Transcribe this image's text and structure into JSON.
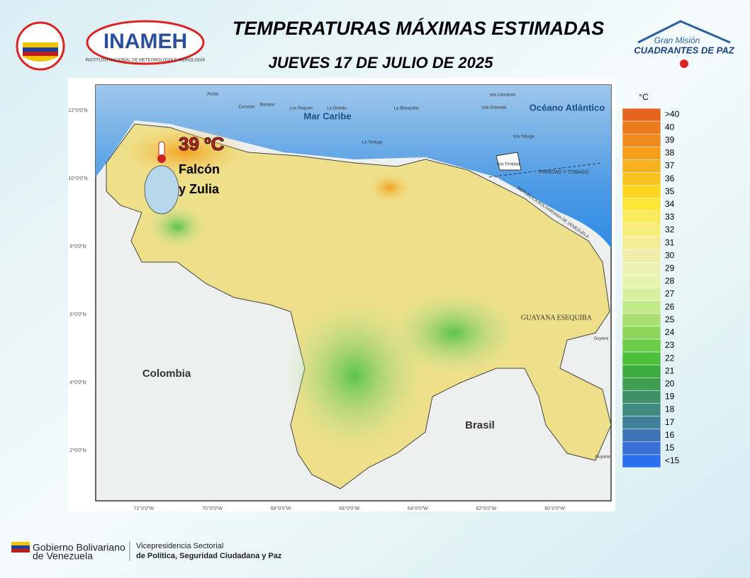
{
  "header": {
    "title": "TEMPERATURAS MÁXIMAS ESTIMADAS",
    "date": "JUEVES 17 DE JULIO DE 2025",
    "logo_left_text": "INAMEH",
    "logo_left_subtext": "INSTITUTO NACIONAL DE METEOROLOGÍA E HIDROLOGÍA",
    "logo_right_top": "Gran Misión",
    "logo_right_bottom": "CUADRANTES DE PAZ"
  },
  "map": {
    "highlight": {
      "value": "39 ºC",
      "region_line1": "Falcón",
      "region_line2": "y Zulia"
    },
    "labels": [
      "Mar Caribe",
      "Océano Atlántico",
      "Colombia",
      "Brasil",
      "GUAYANA ESEQUIBA",
      "TRINIDAD Y TOBAGO",
      "REPUBLICA BOLIVARIANA DE VENEZUELA",
      "Aruba",
      "Curazao",
      "Bonaire",
      "Los Roques",
      "La Orchila",
      "La Blanquilla",
      "La Tortuga",
      "Isla Carriacou",
      "Isla Granada",
      "Isla Tobago",
      "Isla Trinidad",
      "Guyana",
      "Guyana"
    ],
    "lat_labels": [
      "12°0'0\"N",
      "10°0'0\"N",
      "8°0'0\"N",
      "6°0'0\"N",
      "4°0'0\"N",
      "2°0'0\"N"
    ],
    "lon_labels": [
      "72°0'0\"W",
      "70°0'0\"W",
      "68°0'0\"W",
      "66°0'0\"W",
      "64°0'0\"W",
      "62°0'0\"W",
      "60°0'0\"W"
    ]
  },
  "legend": {
    "unit": "°C",
    "items": [
      {
        "label": ">40",
        "color": "#e8641e"
      },
      {
        "label": "40",
        "color": "#ec7a1e"
      },
      {
        "label": "39",
        "color": "#f08c1c"
      },
      {
        "label": "38",
        "color": "#f49e1c"
      },
      {
        "label": "37",
        "color": "#f7b11e"
      },
      {
        "label": "36",
        "color": "#f9c41f"
      },
      {
        "label": "35",
        "color": "#fbd621"
      },
      {
        "label": "34",
        "color": "#fbe536"
      },
      {
        "label": "33",
        "color": "#f8ea5a"
      },
      {
        "label": "32",
        "color": "#f5ec7a"
      },
      {
        "label": "31",
        "color": "#f2ec93"
      },
      {
        "label": "30",
        "color": "#eeedaa"
      },
      {
        "label": "29",
        "color": "#eef1b6"
      },
      {
        "label": "28",
        "color": "#e8f3b0"
      },
      {
        "label": "27",
        "color": "#d8efa0"
      },
      {
        "label": "26",
        "color": "#c3e88a"
      },
      {
        "label": "25",
        "color": "#a9df70"
      },
      {
        "label": "24",
        "color": "#8ad55a"
      },
      {
        "label": "23",
        "color": "#6acb46"
      },
      {
        "label": "22",
        "color": "#4dc03a"
      },
      {
        "label": "21",
        "color": "#3aad3e"
      },
      {
        "label": "20",
        "color": "#3e9e52"
      },
      {
        "label": "19",
        "color": "#3e8f68"
      },
      {
        "label": "18",
        "color": "#3e8a80"
      },
      {
        "label": "17",
        "color": "#3f7f98"
      },
      {
        "label": "16",
        "color": "#3f73b4"
      },
      {
        "label": "15",
        "color": "#3b6fd6"
      },
      {
        "label": "<15",
        "color": "#2a6ff0"
      }
    ]
  },
  "footer": {
    "gov_line1": "Gobierno Bolivariano",
    "gov_line2": "de Venezuela",
    "vice_line1": "Vicepresidencia Sectorial",
    "vice_line2": "de Política, Seguridad Ciudadana y Paz"
  }
}
